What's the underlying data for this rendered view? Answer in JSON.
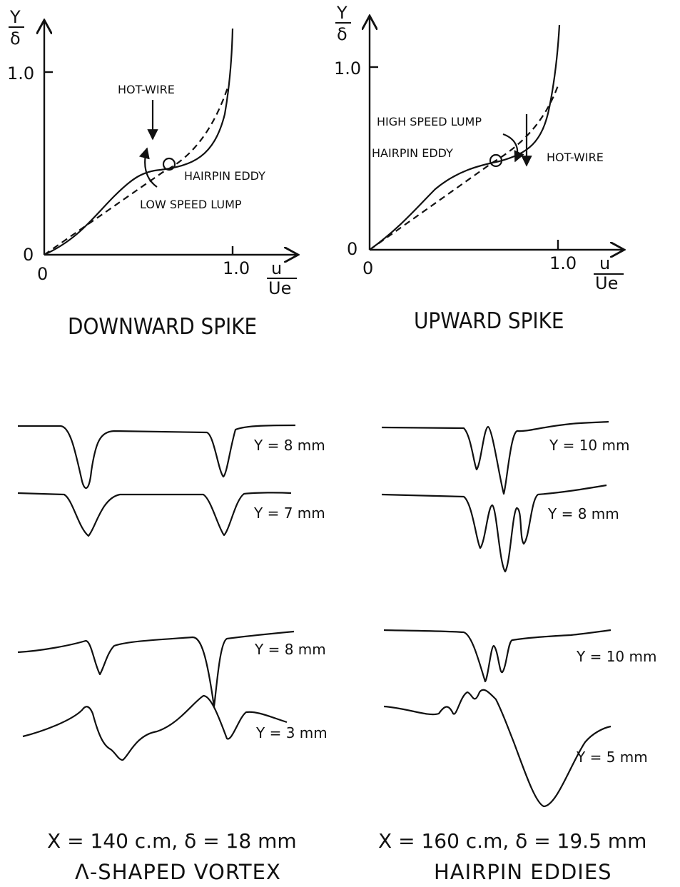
{
  "left_plot": {
    "y_axis_top": "Y",
    "y_axis_bottom": "δ",
    "y_tick": "1.0",
    "y_origin": "0",
    "x_origin": "0",
    "x_tick": "1.0",
    "x_axis_top": "u",
    "x_axis_bottom": "Ue",
    "label_hotwire": "HOT-WIRE",
    "label_hairpin": "HAIRPIN EDDY",
    "label_lump": "LOW SPEED LUMP",
    "caption": "DOWNWARD SPIKE"
  },
  "right_plot": {
    "y_axis_top": "Y",
    "y_axis_bottom": "δ",
    "y_tick": "1.0",
    "y_origin": "0",
    "x_origin": "0",
    "x_tick": "1.0",
    "x_axis_top": "u",
    "x_axis_bottom": "Ue",
    "label_lump": "HIGH SPEED LUMP",
    "label_hairpin": "HAIRPIN EDDY",
    "label_hotwire": "HOT-WIRE",
    "caption": "UPWARD SPIKE"
  },
  "traces": {
    "left_1": "Y = 8 mm",
    "left_2": "Y = 7 mm",
    "left_3": "Y = 8 mm",
    "left_4": "Y = 3 mm",
    "right_1": "Y = 10 mm",
    "right_2": "Y = 8 mm",
    "right_3": "Y = 10 mm",
    "right_4": "Y = 5 mm"
  },
  "footer": {
    "left_params": "X = 140 c.m,  δ = 18 mm",
    "left_title": "Λ-SHAPED VORTEX",
    "right_params": "X = 160 c.m,  δ = 19.5 mm",
    "right_title": "HAIRPIN EDDIES"
  }
}
